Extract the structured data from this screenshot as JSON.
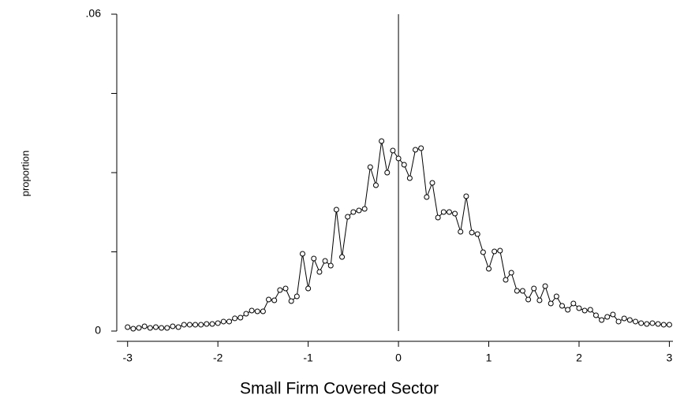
{
  "chart_data": {
    "type": "line",
    "x_label": "Small Firm Covered Sector",
    "y_label": "proportion",
    "x": [
      -3,
      -2.9375,
      -2.875,
      -2.8125,
      -2.75,
      -2.6875,
      -2.625,
      -2.5625,
      -2.5,
      -2.4375,
      -2.375,
      -2.3125,
      -2.25,
      -2.1875,
      -2.125,
      -2.0625,
      -2,
      -1.9375,
      -1.875,
      -1.8125,
      -1.75,
      -1.6875,
      -1.625,
      -1.5625,
      -1.5,
      -1.4375,
      -1.375,
      -1.3125,
      -1.25,
      -1.1875,
      -1.125,
      -1.0625,
      -1,
      -0.9375,
      -0.875,
      -0.8125,
      -0.75,
      -0.6875,
      -0.625,
      -0.5625,
      -0.5,
      -0.4375,
      -0.375,
      -0.3125,
      -0.25,
      -0.1875,
      -0.125,
      -0.0625,
      0,
      0.0625,
      0.125,
      0.1875,
      0.25,
      0.3125,
      0.375,
      0.4375,
      0.5,
      0.5625,
      0.625,
      0.6875,
      0.75,
      0.8125,
      0.875,
      0.9375,
      1,
      1.0625,
      1.125,
      1.1875,
      1.25,
      1.3125,
      1.375,
      1.4375,
      1.5,
      1.5625,
      1.625,
      1.6875,
      1.75,
      1.8125,
      1.875,
      1.9375,
      2,
      2.0625,
      2.125,
      2.1875,
      2.25,
      2.3125,
      2.375,
      2.4375,
      2.5,
      2.5625,
      2.625,
      2.6875,
      2.75,
      2.8125,
      2.875,
      2.9375,
      3
    ],
    "series": [
      {
        "color": "#000000",
        "marker": "circle",
        "values": [
          0.00075,
          0.00045,
          0.0006,
          0.0009,
          0.0006,
          0.00075,
          0.0006,
          0.0006,
          0.0009,
          0.00075,
          0.0012,
          0.0012,
          0.0012,
          0.0012,
          0.00134,
          0.00134,
          0.0015,
          0.0018,
          0.0018,
          0.0024,
          0.00254,
          0.00328,
          0.00388,
          0.00373,
          0.00373,
          0.00597,
          0.00582,
          0.00776,
          0.00806,
          0.00567,
          0.00657,
          0.01463,
          0.00806,
          0.01373,
          0.01119,
          0.01328,
          0.01239,
          0.02299,
          0.01403,
          0.02164,
          0.02254,
          0.02284,
          0.02313,
          0.03104,
          0.02761,
          0.03597,
          0.03,
          0.03418,
          0.03269,
          0.03149,
          0.02896,
          0.03433,
          0.03463,
          0.02537,
          0.02806,
          0.02149,
          0.02254,
          0.02254,
          0.02224,
          0.01881,
          0.02552,
          0.01866,
          0.01836,
          0.01493,
          0.01179,
          0.01507,
          0.01522,
          0.0097,
          0.01104,
          0.00761,
          0.00761,
          0.00597,
          0.00806,
          0.00582,
          0.00851,
          0.00522,
          0.00657,
          0.00478,
          0.00403,
          0.00522,
          0.00433,
          0.00388,
          0.00403,
          0.00299,
          0.00209,
          0.00269,
          0.00313,
          0.0018,
          0.00239,
          0.00209,
          0.0018,
          0.0015,
          0.00134,
          0.0015,
          0.00134,
          0.0012,
          0.0012
        ]
      }
    ],
    "xlim": [
      -3.12,
      3.04
    ],
    "ylim": [
      0,
      0.06
    ],
    "xticks": [
      -3,
      -2,
      -1,
      0,
      1,
      2,
      3
    ],
    "yticks": [
      0,
      {
        "value": 0.06,
        "label": ".06"
      }
    ],
    "yminor_ticks": [
      0.015,
      0.03,
      0.045
    ],
    "vline": 0
  }
}
